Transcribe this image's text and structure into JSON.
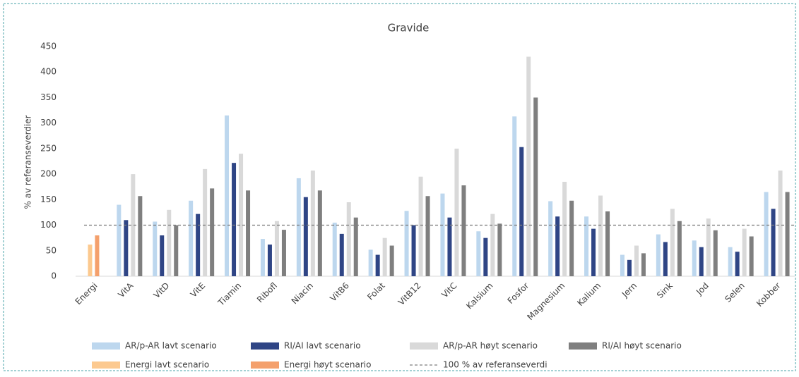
{
  "chart_data": {
    "type": "bar",
    "title": "Gravide",
    "y_label": "% av referanseverdier",
    "categories": [
      "Energi",
      "VitA",
      "VitD",
      "VitE",
      "Tiamin",
      "Ribofl",
      "Niacin",
      "VitB6",
      "Folat",
      "VitB12",
      "VitC",
      "Kalsium",
      "Fosfor",
      "Magnesium",
      "Kalium",
      "Jern",
      "Sink",
      "Jod",
      "Selen",
      "Kobber"
    ],
    "series": [
      {
        "name": "AR/p-AR lavt scenario",
        "color": "#bdd7ee",
        "values": [
          null,
          140,
          107,
          148,
          315,
          73,
          192,
          105,
          52,
          128,
          162,
          88,
          313,
          147,
          117,
          42,
          82,
          70,
          57,
          165
        ]
      },
      {
        "name": "RI/AI lavt scenario",
        "color": "#2f4585",
        "values": [
          null,
          110,
          80,
          122,
          222,
          62,
          155,
          83,
          42,
          100,
          115,
          75,
          253,
          117,
          93,
          32,
          67,
          57,
          48,
          132
        ]
      },
      {
        "name": "AR/p-AR høyt scenario",
        "color": "#d9d9d9",
        "values": [
          null,
          200,
          130,
          210,
          240,
          108,
          207,
          145,
          75,
          195,
          250,
          122,
          430,
          185,
          158,
          60,
          132,
          113,
          93,
          207
        ]
      },
      {
        "name": "RI/AI høyt scenario",
        "color": "#7f7f7f",
        "values": [
          null,
          157,
          100,
          172,
          168,
          91,
          168,
          115,
          60,
          157,
          178,
          103,
          350,
          148,
          127,
          45,
          108,
          90,
          78,
          165
        ]
      },
      {
        "name": "Energi lavt scenario",
        "color": "#fcc98f",
        "values": [
          62,
          null,
          null,
          null,
          null,
          null,
          null,
          null,
          null,
          null,
          null,
          null,
          null,
          null,
          null,
          null,
          null,
          null,
          null,
          null
        ]
      },
      {
        "name": "Energi høyt scenario",
        "color": "#f4a06c",
        "values": [
          80,
          null,
          null,
          null,
          null,
          null,
          null,
          null,
          null,
          null,
          null,
          null,
          null,
          null,
          null,
          null,
          null,
          null,
          null,
          null
        ]
      }
    ],
    "reference_line": {
      "value": 100,
      "label": "100 % av referanseverdi",
      "color": "#7f7f7f"
    },
    "ylim": [
      0,
      450
    ],
    "yticks": [
      0,
      50,
      100,
      150,
      200,
      250,
      300,
      350,
      400,
      450
    ],
    "grid": false
  }
}
